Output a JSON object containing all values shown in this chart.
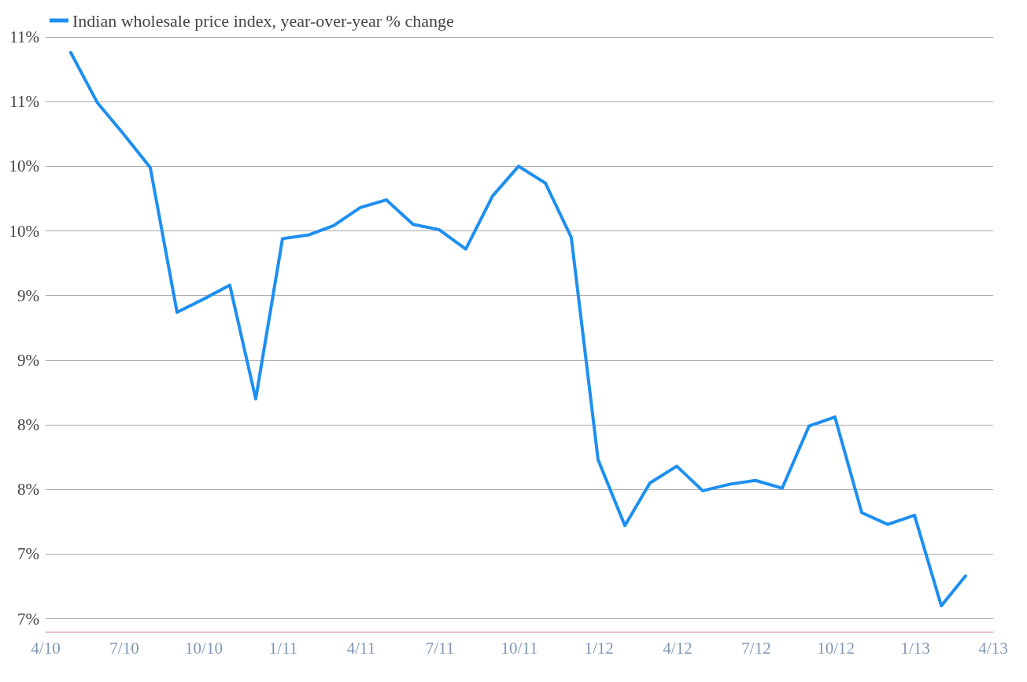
{
  "chart_data": {
    "type": "line",
    "legend": "top left",
    "grid": "y",
    "marker": "none",
    "line_style": "solid",
    "x": [
      "2010-04-30",
      "2010-05-31",
      "2010-06-30",
      "2010-07-31",
      "2010-08-31",
      "2010-09-30",
      "2010-10-31",
      "2010-11-30",
      "2010-12-31",
      "2011-01-31",
      "2011-02-28",
      "2011-03-31",
      "2011-04-30",
      "2011-05-31",
      "2011-06-30",
      "2011-07-31",
      "2011-08-31",
      "2011-09-30",
      "2011-10-31",
      "2011-11-30",
      "2011-12-31",
      "2012-01-31",
      "2012-02-29",
      "2012-03-31",
      "2012-04-30",
      "2012-05-31",
      "2012-06-30",
      "2012-07-31",
      "2012-08-31",
      "2012-09-30",
      "2012-10-31",
      "2012-11-30",
      "2012-12-31",
      "2013-01-31",
      "2013-02-28"
    ],
    "series": [
      {
        "name": "Indian wholesale price index, year-over-year % change",
        "color": "#1e8ff0",
        "values": [
          10.88,
          10.49,
          10.25,
          9.99,
          8.87,
          8.97,
          9.08,
          8.2,
          9.44,
          9.47,
          9.54,
          9.68,
          9.74,
          9.55,
          9.51,
          9.36,
          9.77,
          10.0,
          9.87,
          9.45,
          7.73,
          7.22,
          7.55,
          7.68,
          7.49,
          7.54,
          7.57,
          7.51,
          7.99,
          8.06,
          7.32,
          7.23,
          7.3,
          6.6,
          6.83
        ]
      }
    ],
    "xlim": [
      "2010-04-01",
      "2013-04-01"
    ],
    "xticks": [
      {
        "value": "2010-04-01",
        "label": "4/10"
      },
      {
        "value": "2010-07-01",
        "label": "7/10"
      },
      {
        "value": "2010-10-01",
        "label": "10/10"
      },
      {
        "value": "2011-01-01",
        "label": "1/11"
      },
      {
        "value": "2011-04-01",
        "label": "4/11"
      },
      {
        "value": "2011-07-01",
        "label": "7/11"
      },
      {
        "value": "2011-10-01",
        "label": "10/11"
      },
      {
        "value": "2012-01-01",
        "label": "1/12"
      },
      {
        "value": "2012-04-01",
        "label": "4/12"
      },
      {
        "value": "2012-07-01",
        "label": "7/12"
      },
      {
        "value": "2012-10-01",
        "label": "10/12"
      },
      {
        "value": "2013-01-01",
        "label": "1/13"
      },
      {
        "value": "2013-04-01",
        "label": "4/13"
      }
    ],
    "ylim": [
      6.4,
      11.0
    ],
    "yticks": [
      {
        "value": 6.5,
        "label": "7%"
      },
      {
        "value": 7.0,
        "label": "7%"
      },
      {
        "value": 7.5,
        "label": "8%"
      },
      {
        "value": 8.0,
        "label": "8%"
      },
      {
        "value": 8.5,
        "label": "9%"
      },
      {
        "value": 9.0,
        "label": "9%"
      },
      {
        "value": 9.5,
        "label": "10%"
      },
      {
        "value": 10.0,
        "label": "10%"
      },
      {
        "value": 10.5,
        "label": "11%"
      },
      {
        "value": 11.0,
        "label": "11%"
      }
    ]
  }
}
